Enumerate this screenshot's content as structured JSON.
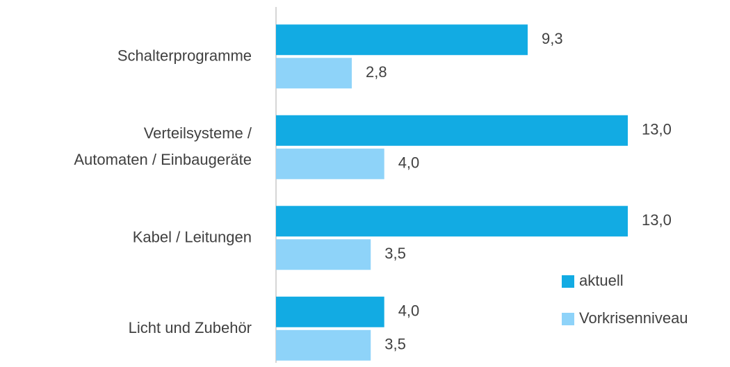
{
  "chart_data": {
    "type": "barh",
    "categories": [
      "Schalterprogramme",
      "Verteilsysteme / Automaten / Einbaugeräte",
      "Kabel / Leitungen",
      "Licht und Zubehör"
    ],
    "series": [
      {
        "name": "aktuell",
        "color": "#12abe3",
        "values": [
          9.3,
          13.0,
          13.0,
          4.0
        ],
        "value_labels": [
          "9,3",
          "13,0",
          "13,0",
          "4,0"
        ]
      },
      {
        "name": "Vorkrisenniveau",
        "color": "#8ed3f9",
        "values": [
          2.8,
          4.0,
          3.5,
          3.5
        ],
        "value_labels": [
          "2,8",
          "4,0",
          "3,5",
          "3,5"
        ]
      }
    ],
    "xlim": [
      0,
      13
    ],
    "legend": "lower right"
  }
}
